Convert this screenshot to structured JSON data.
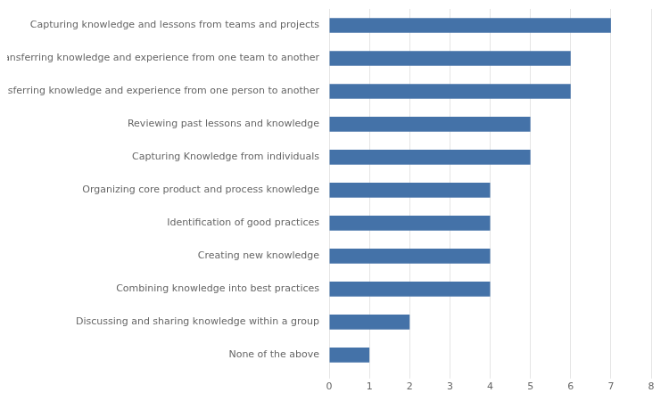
{
  "chart_data": {
    "type": "bar",
    "orientation": "horizontal",
    "categories": [
      "None of the above",
      "Discussing and sharing knowledge within a group",
      "Combining knowledge into best practices",
      "Creating new knowledge",
      "Identification of good practices",
      "Organizing core product and process knowledge",
      "Capturing Knowledge from individuals",
      "Reviewing past lessons and knowledge",
      "Transferring knowledge and experience from one person to another",
      "Transferring knowledge and experience from one team to another",
      "Capturing knowledge and lessons from teams and projects"
    ],
    "values": [
      1,
      2,
      4,
      4,
      4,
      4,
      5,
      5,
      6,
      6,
      7
    ],
    "color": "#4472a8",
    "xlim": [
      0,
      8
    ],
    "xticks": [
      0,
      1,
      2,
      3,
      4,
      5,
      6,
      7,
      8
    ],
    "grid": true
  }
}
